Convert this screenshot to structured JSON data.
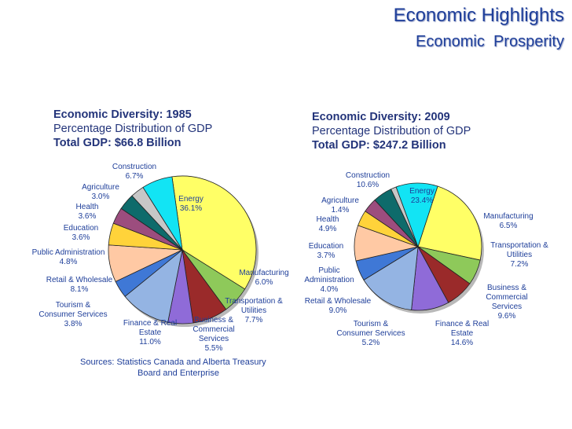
{
  "header": {
    "title": "Economic Highlights",
    "subtitle": "Economic  Prosperity"
  },
  "colors": {
    "title": "#1f3f9a",
    "label": "#1f3f9a",
    "header_text": "#23347a"
  },
  "source": {
    "line1": "Sources:  Statistics Canada and Alberta Treasury",
    "line2": "Board and Enterprise"
  },
  "chart_data": [
    {
      "type": "pie",
      "title": "Economic Diversity: 1985",
      "subtitle": "Percentage Distribution of GDP",
      "total": "Total GDP: $66.8 Billion",
      "slices": [
        {
          "name": "Energy",
          "value": 36.1,
          "label_lines": [
            "Energy",
            "36.1%"
          ],
          "color": "#ffff66"
        },
        {
          "name": "Manufacturing",
          "value": 6.0,
          "label_lines": [
            "Manufacturing",
            "6.0%"
          ],
          "color": "#8ec95a"
        },
        {
          "name": "Transportation & Utilities",
          "value": 7.7,
          "label_lines": [
            "Transportation &",
            "Utilities",
            "7.7%"
          ],
          "color": "#9a2a2a"
        },
        {
          "name": "Business & Commercial Services",
          "value": 5.5,
          "label_lines": [
            "Business &",
            "Commercial",
            "Services",
            "5.5%"
          ],
          "color": "#8f6bd8"
        },
        {
          "name": "Finance & Real Estate",
          "value": 11.0,
          "label_lines": [
            "Finance & Real",
            "Estate",
            "11.0%"
          ],
          "color": "#94b4e3"
        },
        {
          "name": "Tourism & Consumer Services",
          "value": 3.8,
          "label_lines": [
            "Tourism &",
            "Consumer Services",
            "3.8%"
          ],
          "color": "#3f78d6"
        },
        {
          "name": "Retail & Wholesale",
          "value": 8.1,
          "label_lines": [
            "Retail & Wholesale",
            "8.1%"
          ],
          "color": "#ffc9a4"
        },
        {
          "name": "Public Administration",
          "value": 4.8,
          "label_lines": [
            "Public Administration",
            "4.8%"
          ],
          "color": "#ffd33a"
        },
        {
          "name": "Education",
          "value": 3.6,
          "label_lines": [
            "Education",
            "3.6%"
          ],
          "color": "#9c4d7e"
        },
        {
          "name": "Health",
          "value": 3.6,
          "label_lines": [
            "Health",
            "3.6%"
          ],
          "color": "#0e6b6b"
        },
        {
          "name": "Agriculture",
          "value": 3.0,
          "label_lines": [
            "Agriculture",
            "3.0%"
          ],
          "color": "#c7c7c7"
        },
        {
          "name": "Construction",
          "value": 6.7,
          "label_lines": [
            "Construction",
            "6.7%"
          ],
          "color": "#12e4f4"
        }
      ]
    },
    {
      "type": "pie",
      "title": "Economic Diversity: 2009",
      "subtitle": "Percentage Distribution of GDP",
      "total": "Total GDP: $247.2 Billion",
      "slices": [
        {
          "name": "Energy",
          "value": 23.4,
          "label_lines": [
            "Energy",
            "23.4%"
          ],
          "color": "#ffff66"
        },
        {
          "name": "Manufacturing",
          "value": 6.5,
          "label_lines": [
            "Manufacturing",
            "6.5%"
          ],
          "color": "#8ec95a"
        },
        {
          "name": "Transportation & Utilities",
          "value": 7.2,
          "label_lines": [
            "Transportation &",
            "Utilities",
            "7.2%"
          ],
          "color": "#9a2a2a"
        },
        {
          "name": "Business & Commercial Services",
          "value": 9.6,
          "label_lines": [
            "Business &",
            "Commercial",
            "Services",
            "9.6%"
          ],
          "color": "#8f6bd8"
        },
        {
          "name": "Finance & Real Estate",
          "value": 14.6,
          "label_lines": [
            "Finance & Real",
            "Estate",
            "14.6%"
          ],
          "color": "#94b4e3"
        },
        {
          "name": "Tourism & Consumer Services",
          "value": 5.2,
          "label_lines": [
            "Tourism &",
            "Consumer Services",
            "5.2%"
          ],
          "color": "#3f78d6"
        },
        {
          "name": "Retail & Wholesale",
          "value": 9.0,
          "label_lines": [
            "Retail & Wholesale",
            "9.0%"
          ],
          "color": "#ffc9a4"
        },
        {
          "name": "Public Administration",
          "value": 4.0,
          "label_lines": [
            "Public",
            "Administration",
            "4.0%"
          ],
          "color": "#ffd33a"
        },
        {
          "name": "Education",
          "value": 3.7,
          "label_lines": [
            "Education",
            "3.7%"
          ],
          "color": "#9c4d7e"
        },
        {
          "name": "Health",
          "value": 4.9,
          "label_lines": [
            "Health",
            "4.9%"
          ],
          "color": "#0e6b6b"
        },
        {
          "name": "Agriculture",
          "value": 1.4,
          "label_lines": [
            "Agriculture",
            "1.4%"
          ],
          "color": "#c7c7c7"
        },
        {
          "name": "Construction",
          "value": 10.6,
          "label_lines": [
            "Construction",
            "10.6%"
          ],
          "color": "#12e4f4"
        }
      ]
    }
  ]
}
